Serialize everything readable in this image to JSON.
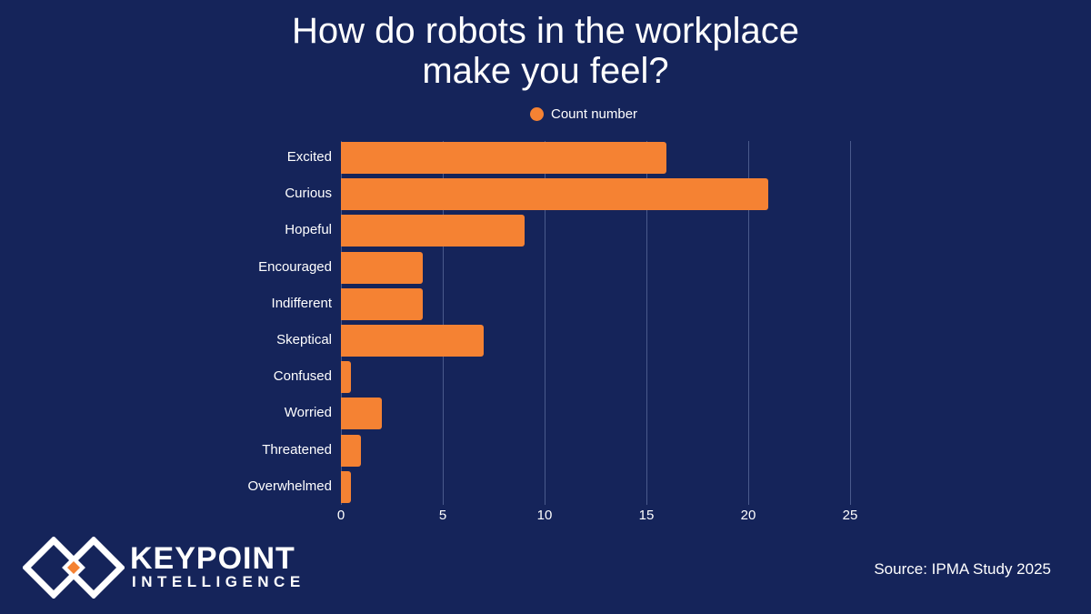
{
  "header": {
    "title_line1": "How do robots in the workplace",
    "title_line2": "make you feel?"
  },
  "legend": {
    "label": "Count number",
    "color": "#f58233"
  },
  "footer": {
    "brand_top": "KEYPOINT",
    "brand_bottom": "INTELLIGENCE",
    "source": "Source: IPMA Study 2025"
  },
  "ticks": [
    "0",
    "5",
    "10",
    "15",
    "20",
    "25"
  ],
  "chart_data": {
    "type": "bar",
    "orientation": "horizontal",
    "title": "How do robots in the workplace make you feel?",
    "categories": [
      "Excited",
      "Curious",
      "Hopeful",
      "Encouraged",
      "Indifferent",
      "Skeptical",
      "Confused",
      "Worried",
      "Threatened",
      "Overwhelmed"
    ],
    "series": [
      {
        "name": "Count number",
        "values": [
          16,
          21,
          9,
          4,
          4,
          7,
          0.5,
          2,
          1,
          0.5
        ],
        "color": "#f58233"
      }
    ],
    "xlabel": "",
    "ylabel": "",
    "xlim": [
      0,
      25
    ],
    "xticks": [
      0,
      5,
      10,
      15,
      20,
      25
    ],
    "grid": true,
    "legend_position": "top"
  }
}
